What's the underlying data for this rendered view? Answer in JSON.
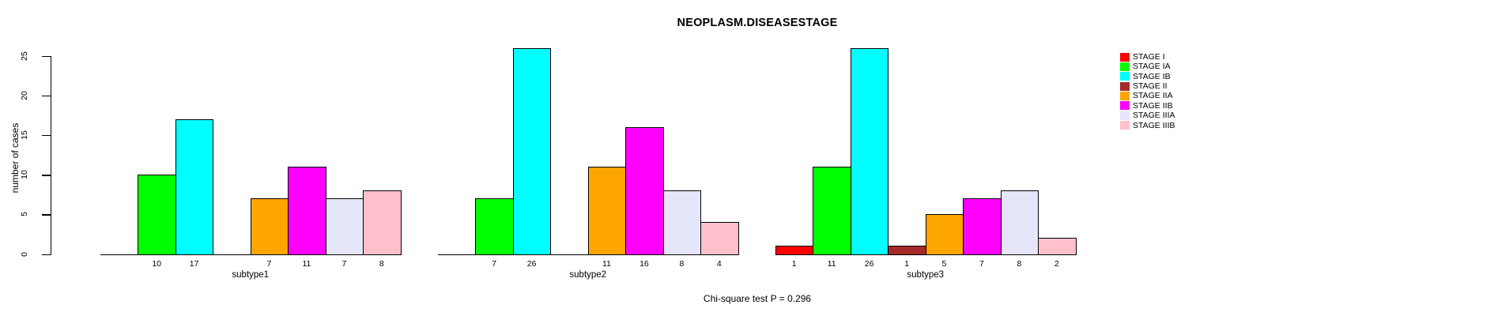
{
  "chart_data": {
    "type": "bar",
    "title": "NEOPLASM.DISEASESTAGE",
    "ylabel": "number of cases",
    "xlabel": "",
    "ylim": [
      0,
      25
    ],
    "yticks": [
      0,
      5,
      10,
      15,
      20,
      25
    ],
    "categories": [
      "subtype1",
      "subtype2",
      "subtype3"
    ],
    "series": [
      {
        "name": "STAGE I",
        "color": "#FF0000",
        "values": [
          0,
          0,
          1
        ]
      },
      {
        "name": "STAGE IA",
        "color": "#00FF00",
        "values": [
          10,
          7,
          11
        ]
      },
      {
        "name": "STAGE IB",
        "color": "#00FFFF",
        "values": [
          17,
          26,
          26
        ]
      },
      {
        "name": "STAGE II",
        "color": "#A52A2A",
        "values": [
          0,
          0,
          1
        ]
      },
      {
        "name": "STAGE IIA",
        "color": "#FFA500",
        "values": [
          7,
          11,
          5
        ]
      },
      {
        "name": "STAGE IIB",
        "color": "#FF00FF",
        "values": [
          11,
          16,
          7
        ]
      },
      {
        "name": "STAGE IIIA",
        "color": "#E6E6FA",
        "values": [
          7,
          8,
          8
        ]
      },
      {
        "name": "STAGE IIIB",
        "color": "#FFC0CB",
        "values": [
          8,
          4,
          2
        ]
      }
    ],
    "bar_label_rule": "nonzero bar values printed below baseline; zero bars drawn as flat line with no label",
    "legend_position": "top-right, no box, unbordered swatches",
    "grid": "off",
    "footer": "Chi-square test P = 0.296"
  }
}
